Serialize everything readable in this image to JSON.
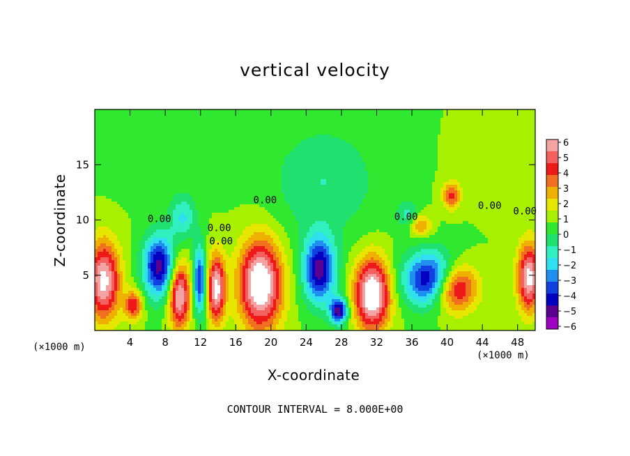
{
  "chart_data": {
    "type": "heatmap",
    "title": "vertical velocity",
    "xlabel": "X-coordinate",
    "ylabel": "Z-coordinate",
    "x_unit": "(×1000 m)",
    "x_ticks": [
      4,
      8,
      12,
      16,
      20,
      24,
      28,
      32,
      36,
      40,
      44,
      48
    ],
    "y_ticks": [
      5,
      10,
      15
    ],
    "xlim": [
      0,
      50
    ],
    "ylim": [
      0,
      20
    ],
    "colorbar": {
      "ticks": [
        6,
        5,
        4,
        3,
        2,
        1,
        0,
        -1,
        -2,
        -3,
        -4,
        -5,
        -6
      ],
      "colors": [
        "#f4a3a3",
        "#f26060",
        "#ee1a1a",
        "#f07020",
        "#f0b000",
        "#e6e600",
        "#a6f000",
        "#30e830",
        "#20e070",
        "#30f0c0",
        "#30e0f0",
        "#2090f0",
        "#1040e0",
        "#0000c0",
        "#5a0090",
        "#a000c0"
      ],
      "range": [
        -6,
        6
      ]
    },
    "contour_labels": [
      "0.00",
      "0.00",
      "0.00",
      "0.00",
      "0.00",
      "0.00",
      "0.00"
    ],
    "contour_interval_text": "CONTOUR INTERVAL = 8.000E+00",
    "features": [
      {
        "x": 1.0,
        "z": 4.5,
        "w": 6,
        "rx": 1.8,
        "rz": 3.5
      },
      {
        "x": 4.4,
        "z": 2.3,
        "w": 4,
        "rx": 1.0,
        "rz": 1.3
      },
      {
        "x": 7.3,
        "z": 5.8,
        "w": -6,
        "rx": 1.8,
        "rz": 2.8
      },
      {
        "x": 9.6,
        "z": 3.2,
        "w": 6,
        "rx": 1.2,
        "rz": 3.0
      },
      {
        "x": 11.9,
        "z": 4.5,
        "w": -5,
        "rx": 0.7,
        "rz": 3.0
      },
      {
        "x": 13.8,
        "z": 3.8,
        "w": 6,
        "rx": 1.0,
        "rz": 3.0
      },
      {
        "x": 18.8,
        "z": 4.2,
        "w": 7,
        "rx": 2.4,
        "rz": 4.0
      },
      {
        "x": 25.5,
        "z": 5.5,
        "w": -6,
        "rx": 1.8,
        "rz": 3.0
      },
      {
        "x": 27.7,
        "z": 1.8,
        "w": -6,
        "rx": 1.0,
        "rz": 1.2
      },
      {
        "x": 31.5,
        "z": 3.3,
        "w": 7,
        "rx": 2.0,
        "rz": 3.2
      },
      {
        "x": 38.5,
        "z": 4.6,
        "w": -7,
        "rx": 3.2,
        "rz": 2.4
      },
      {
        "x": 40.7,
        "z": 4.0,
        "w": 7,
        "rx": 2.5,
        "rz": 2.2
      },
      {
        "x": 49.3,
        "z": 4.8,
        "w": 6,
        "rx": 1.3,
        "rz": 3.0
      },
      {
        "x": 10.0,
        "z": 10.2,
        "w": -2.5,
        "rx": 1.5,
        "rz": 2.0
      },
      {
        "x": 26.0,
        "z": 13.5,
        "w": -1.6,
        "rx": 6.0,
        "rz": 5.0
      },
      {
        "x": 35.5,
        "z": 10.5,
        "w": -1.8,
        "rx": 1.2,
        "rz": 1.2
      },
      {
        "x": 40.5,
        "z": 12.2,
        "w": 3.5,
        "rx": 1.0,
        "rz": 1.2
      },
      {
        "x": 37.0,
        "z": 9.5,
        "w": 2.5,
        "rx": 1.2,
        "rz": 1.0
      },
      {
        "x": 7.0,
        "z": 16.0,
        "w": -0.8,
        "rx": 6.0,
        "rz": 3.0
      },
      {
        "x": 47.0,
        "z": 15.0,
        "w": 0.8,
        "rx": 4.0,
        "rz": 3.0
      }
    ]
  }
}
